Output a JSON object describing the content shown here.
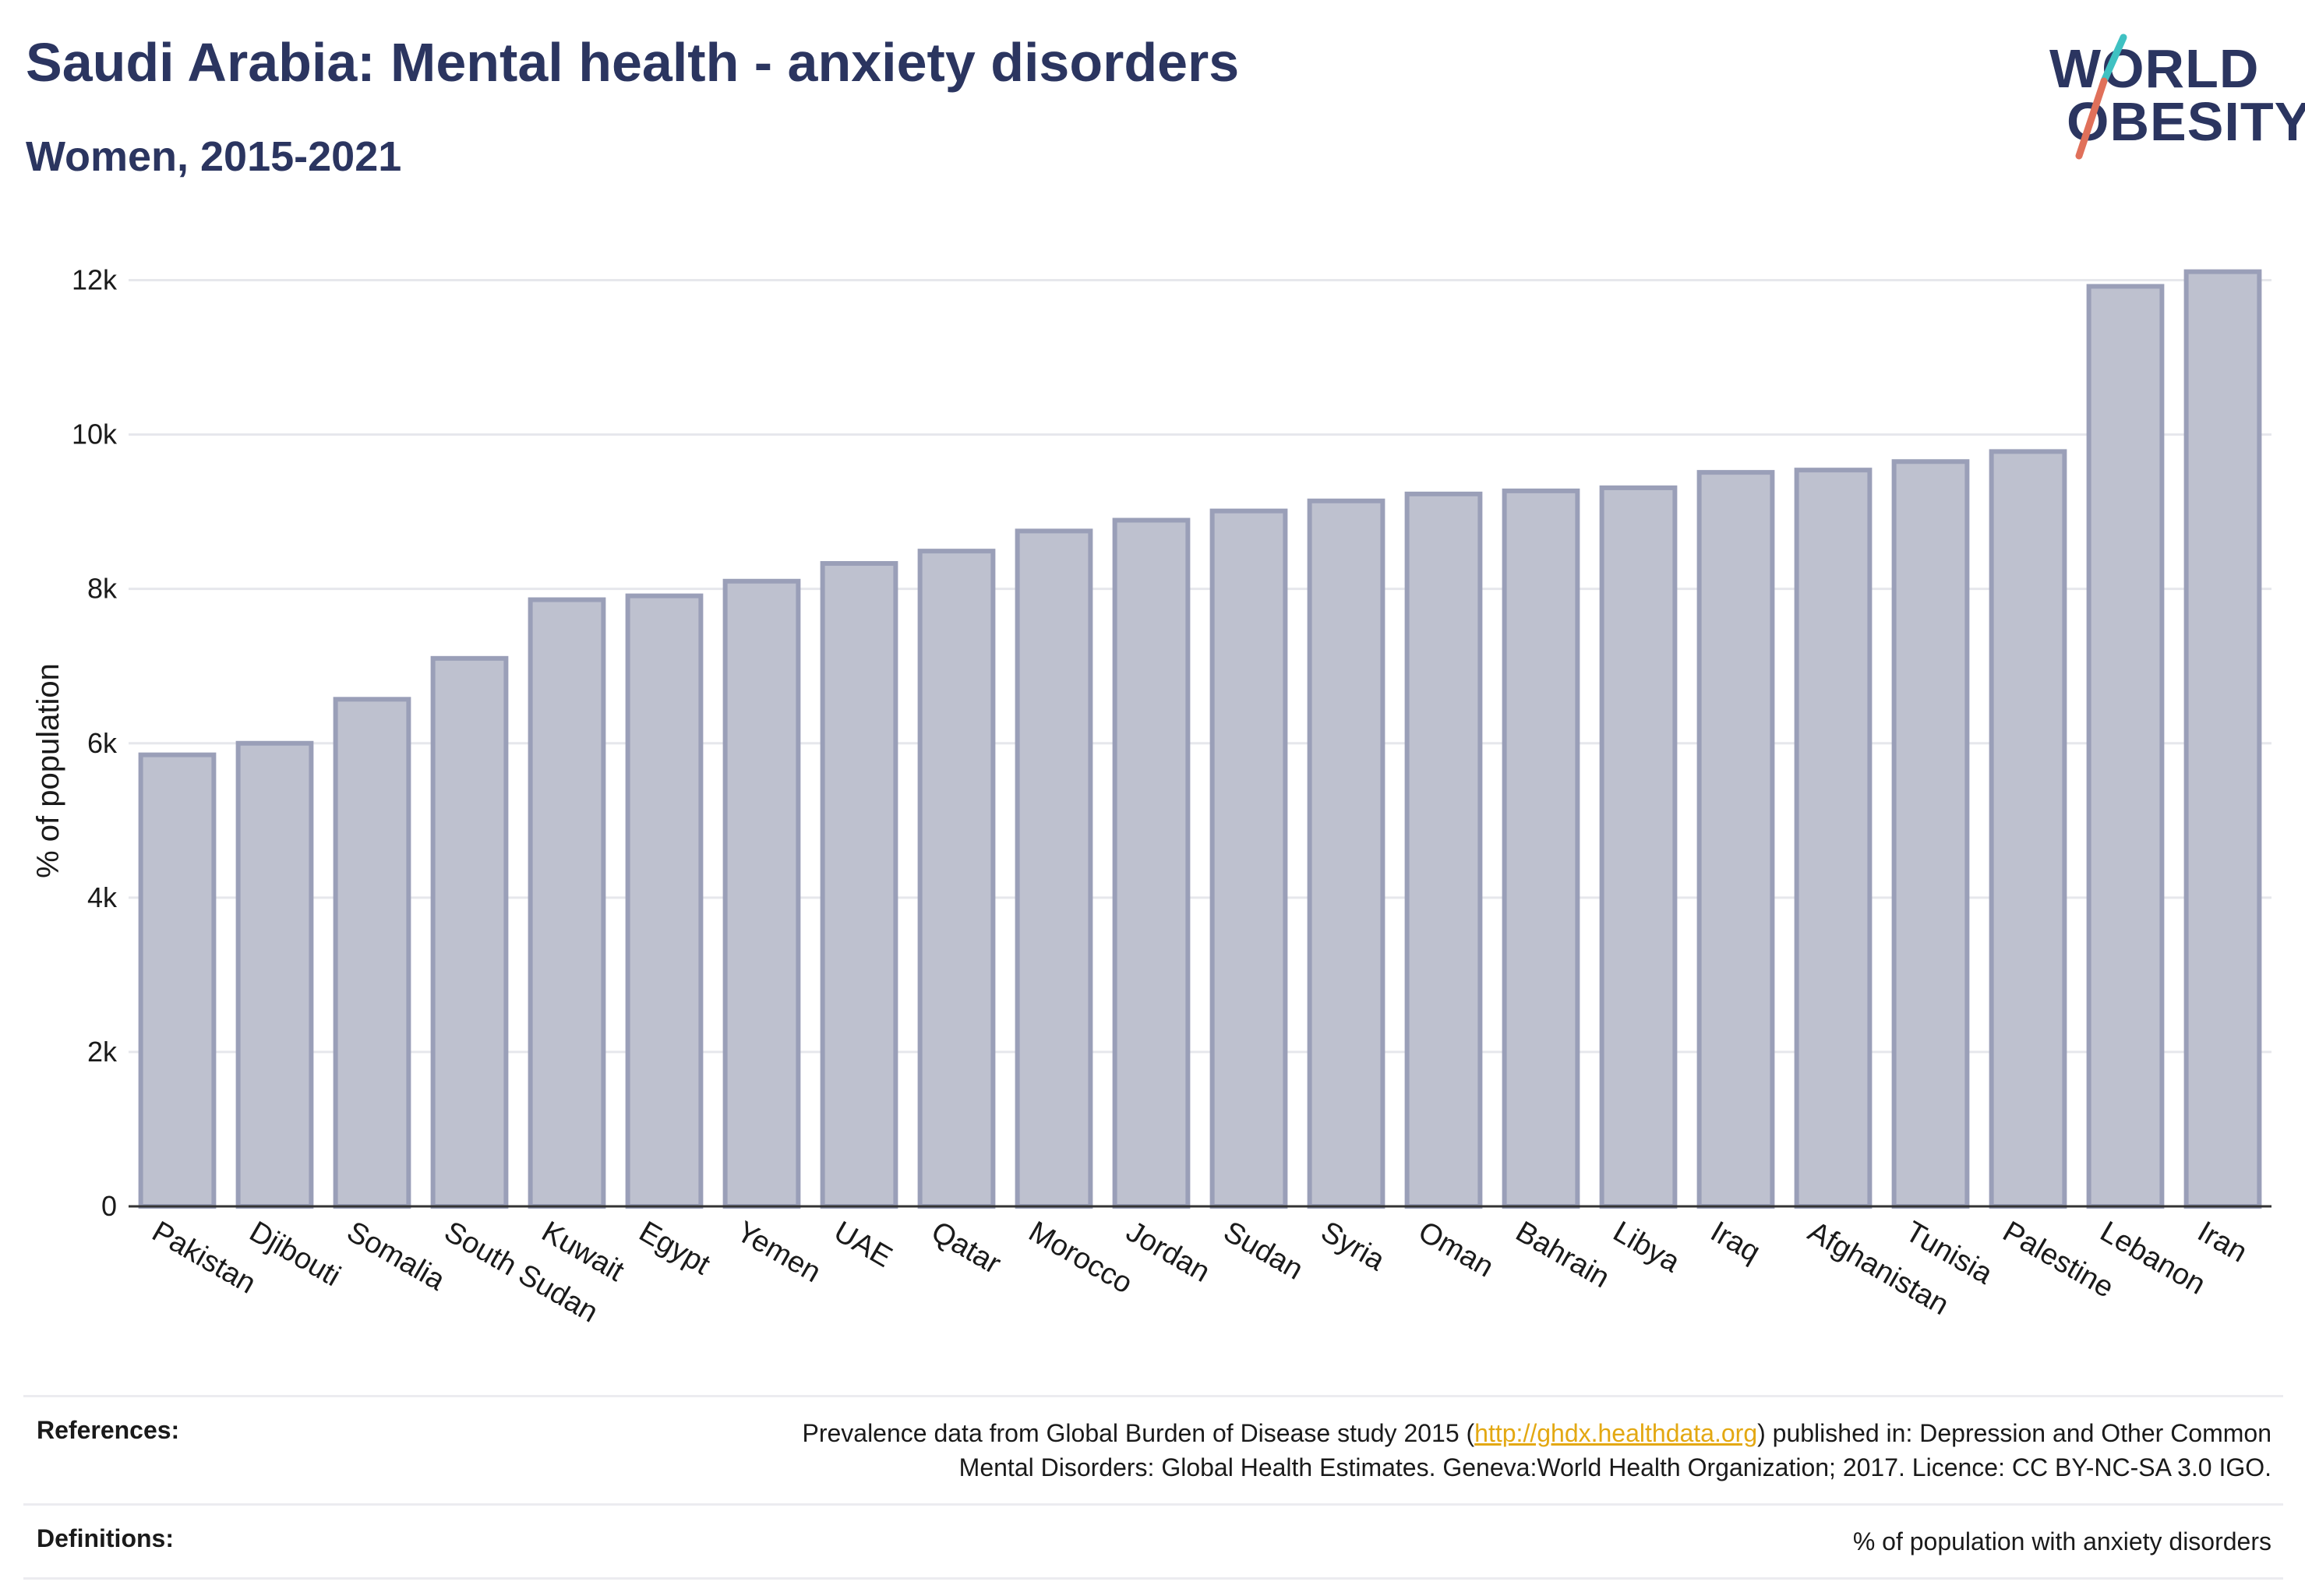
{
  "header": {
    "title": "Saudi Arabia: Mental health - anxiety disorders",
    "subtitle": "Women, 2015-2021"
  },
  "logo": {
    "line1": "WORLD",
    "line2": "OBESITY"
  },
  "colors": {
    "bar_fill": "#bec1cf",
    "bar_stroke": "#9a9fb8",
    "title": "#2b3560",
    "logo_teal": "#3fc1c2",
    "logo_coral": "#e0705a",
    "link": "#e3a812"
  },
  "chart_data": {
    "type": "bar",
    "title": "Saudi Arabia: Mental health - anxiety disorders",
    "subtitle": "Women, 2015-2021",
    "ylabel": "% of population",
    "xlabel": "",
    "ylim": [
      0,
      12500
    ],
    "yticks": [
      0,
      2000,
      4000,
      6000,
      8000,
      10000,
      12000
    ],
    "ytick_labels": [
      "0",
      "2k",
      "4k",
      "6k",
      "8k",
      "10k",
      "12k"
    ],
    "grid": true,
    "categories": [
      "Pakistan",
      "Djibouti",
      "Somalia",
      "South Sudan",
      "Kuwait",
      "Egypt",
      "Yemen",
      "UAE",
      "Qatar",
      "Morocco",
      "Jordan",
      "Sudan",
      "Syria",
      "Oman",
      "Bahrain",
      "Libya",
      "Iraq",
      "Afghanistan",
      "Tunisia",
      "Palestine",
      "Lebanon",
      "Iran"
    ],
    "values": [
      5850,
      6000,
      6570,
      7100,
      7860,
      7910,
      8100,
      8330,
      8490,
      8750,
      8890,
      9010,
      9140,
      9230,
      9270,
      9310,
      9510,
      9540,
      9650,
      9780,
      11920,
      12110
    ]
  },
  "references": {
    "label": "References:",
    "text_before": "Prevalence data from Global Burden of Disease study 2015 (",
    "link_text": "http://ghdx.healthdata.org",
    "text_after": ") published in: Depression and Other Common",
    "text_line2": "Mental Disorders: Global Health Estimates. Geneva:World Health Organization; 2017. Licence: CC BY-NC-SA 3.0 IGO."
  },
  "definitions": {
    "label": "Definitions:",
    "text": "% of population with anxiety disorders"
  }
}
